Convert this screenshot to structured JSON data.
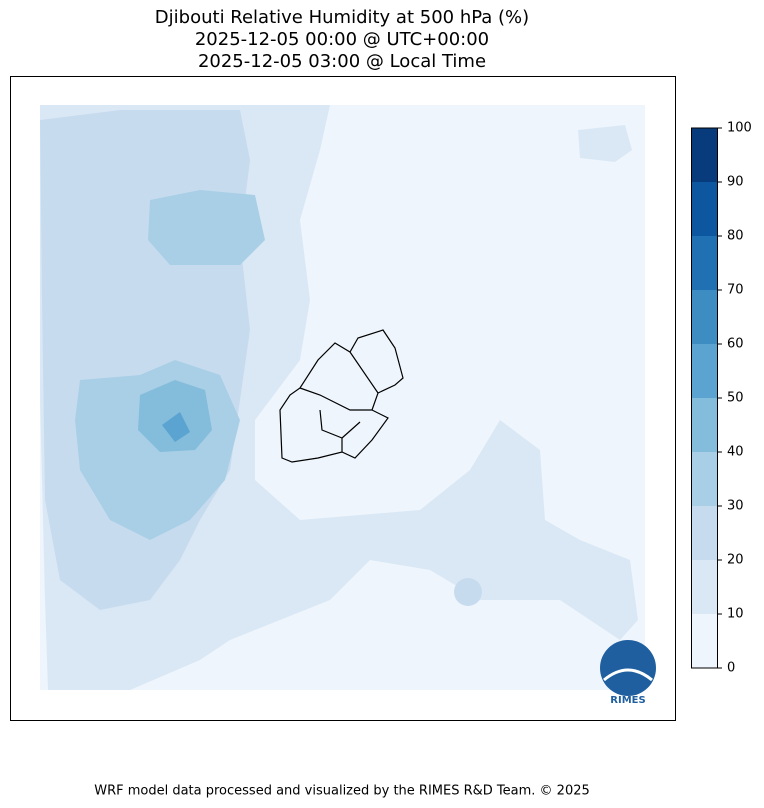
{
  "chart_data": {
    "type": "contourf",
    "title": [
      "Djibouti Relative Humidity at 500 hPa (%)",
      "2025-12-05 00:00 @ UTC+00:00",
      "2025-12-05 03:00 @ Local Time"
    ],
    "colorbar": {
      "ticks": [
        0,
        10,
        20,
        30,
        40,
        50,
        60,
        70,
        80,
        90,
        100
      ],
      "colors": [
        "#eef5fc",
        "#dae8f5",
        "#c7dbef",
        "#a8cfe5",
        "#84bcdb",
        "#5ba3d0",
        "#3d8dc3",
        "#2070b4",
        "#0d56a0",
        "#083b7c"
      ]
    },
    "logo": "RIMES",
    "footer": "WRF model data processed and visualized by the RIMES R&D Team. © 2025"
  }
}
